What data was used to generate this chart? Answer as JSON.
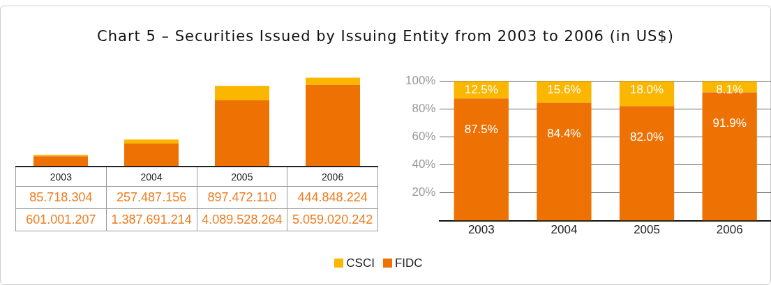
{
  "chart_data": [
    {
      "type": "bar",
      "title": "Chart 5 – Securities Issued by Issuing Entity from 2003 to 2006 (in US$)",
      "categories": [
        "2003",
        "2004",
        "2005",
        "2006"
      ],
      "stacked": true,
      "tick_labels": false,
      "grid": false,
      "legend": "bottom",
      "series": [
        {
          "name": "FIDC",
          "color": "#ee7203",
          "values": [
            601001207,
            1387691214,
            4089528264,
            5059020242
          ],
          "value_labels": [
            "601.001.207",
            "1.387.691.214",
            "4.089.528.264",
            "5.059.020.242"
          ]
        },
        {
          "name": "CSCI",
          "color": "#fbb600",
          "values": [
            85718304,
            257487156,
            897472110,
            444848224
          ],
          "value_labels": [
            "85.718.304",
            "257.487.156",
            "897.472.110",
            "444.848.224"
          ]
        }
      ]
    },
    {
      "type": "bar",
      "categories": [
        "2003",
        "2004",
        "2005",
        "2006"
      ],
      "stacked": true,
      "ylim": [
        0,
        100
      ],
      "yticks": [
        {
          "value": 20,
          "label": "20%"
        },
        {
          "value": 40,
          "label": "40%"
        },
        {
          "value": 60,
          "label": "60%"
        },
        {
          "value": 80,
          "label": "80%"
        },
        {
          "value": 100,
          "label": "100%"
        }
      ],
      "grid": "y",
      "legend": "bottom",
      "series": [
        {
          "name": "FIDC",
          "color": "#ee7203",
          "values": [
            87.5,
            84.4,
            82.0,
            91.9
          ],
          "value_labels": [
            "87.5%",
            "84.4%",
            "82.0%",
            "91.9%"
          ]
        },
        {
          "name": "CSCI",
          "color": "#fbb600",
          "values": [
            12.5,
            15.6,
            18.0,
            8.1
          ],
          "value_labels": [
            "12.5%",
            "15.6%",
            "18.0%",
            "8.1%"
          ]
        }
      ]
    }
  ]
}
